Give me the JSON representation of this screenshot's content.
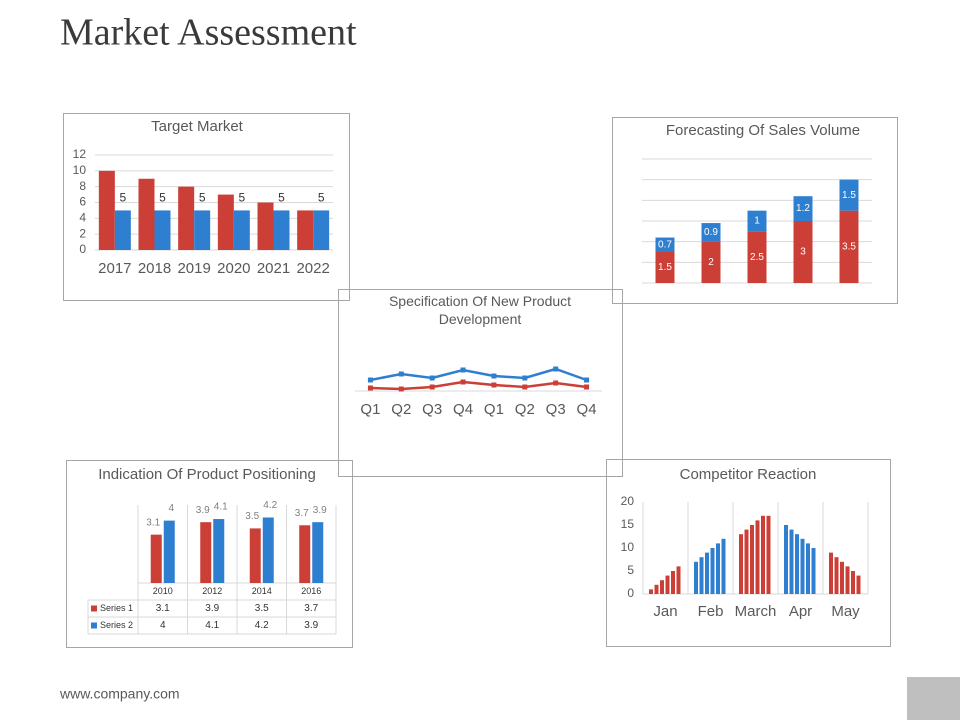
{
  "title": "Market Assessment",
  "footer": "www.company.com",
  "chart_data": [
    {
      "type": "grouped_bar",
      "title": "Target Market",
      "categories": [
        "2017",
        "2018",
        "2019",
        "2020",
        "2021",
        "2022"
      ],
      "series": [
        {
          "color": "#cc3f36",
          "values": [
            10,
            9,
            8,
            7,
            6,
            5
          ],
          "show_labels": false
        },
        {
          "color": "#2f7fd0",
          "values": [
            5,
            5,
            5,
            5,
            5,
            5
          ],
          "show_labels": true
        }
      ],
      "ylim": [
        0,
        12
      ],
      "yticks": [
        0,
        2,
        4,
        6,
        8,
        10,
        12
      ],
      "grid": true
    },
    {
      "type": "stacked_bar",
      "title": "Forecasting Of Sales Volume",
      "categories": [
        null,
        null,
        null,
        null,
        null
      ],
      "series": [
        {
          "color": "#cc3f36",
          "values": [
            1.5,
            2,
            2.5,
            3,
            3.5
          ]
        },
        {
          "color": "#2f7fd0",
          "values": [
            0.7,
            0.9,
            1,
            1.2,
            1.5
          ]
        }
      ],
      "ylim": [
        0,
        6
      ],
      "yticks": [
        0,
        1,
        2,
        3,
        4,
        5,
        6
      ],
      "grid": true,
      "tick_labels": false
    },
    {
      "type": "line",
      "title": "Specification Of New Product Development",
      "categories": [
        "Q1",
        "Q2",
        "Q3",
        "Q4",
        "Q1",
        "Q2",
        "Q3",
        "Q4"
      ],
      "series": [
        {
          "color": "#2f7fd0",
          "values": [
            2.2,
            3.4,
            2.6,
            4.2,
            3,
            2.6,
            4.4,
            2.2
          ]
        },
        {
          "color": "#cc3f36",
          "values": [
            0.6,
            0.4,
            0.8,
            1.8,
            1.2,
            0.8,
            1.6,
            0.8
          ]
        }
      ],
      "ylim": [
        0,
        10
      ]
    },
    {
      "type": "bar_table",
      "title": "Indication Of Product Positioning",
      "categories": [
        "2010",
        "2012",
        "2014",
        "2016"
      ],
      "series": [
        {
          "name": "Series 1",
          "color": "#cc3f36",
          "values": [
            3.1,
            3.9,
            3.5,
            3.7
          ]
        },
        {
          "name": "Series 2",
          "color": "#2f7fd0",
          "values": [
            4,
            4.1,
            4.2,
            3.9
          ]
        }
      ],
      "ylim": [
        0,
        5
      ]
    },
    {
      "type": "multi_bar",
      "title": "Competitor Reaction",
      "categories": [
        "Jan",
        "Feb",
        "March",
        "Apr",
        "May"
      ],
      "colors": [
        "#cc3f36",
        "#2f7fd0",
        "#cc3f36",
        "#2f7fd0",
        "#cc3f36"
      ],
      "values": [
        [
          1,
          2,
          3,
          4,
          5,
          6
        ],
        [
          7,
          8,
          9,
          10,
          11,
          12
        ],
        [
          13,
          14,
          15,
          16,
          17,
          17
        ],
        [
          15,
          14,
          13,
          12,
          11,
          10
        ],
        [
          9,
          8,
          7,
          6,
          5,
          4
        ]
      ],
      "ylim": [
        0,
        20
      ],
      "yticks": [
        0,
        5,
        10,
        15,
        20
      ]
    }
  ]
}
